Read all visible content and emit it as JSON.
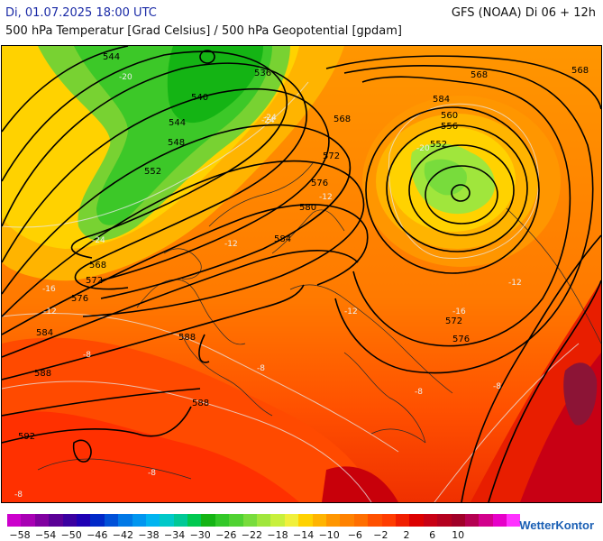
{
  "header": {
    "datetime": "Di, 01.07.2025 18:00 UTC",
    "model": "GFS (NOAA) Di 06 + 12h",
    "subtitle": "500 hPa Temperatur [Grad Celsius] / 500 hPa Geopotential [gpdam]"
  },
  "brand": "WetterKontor",
  "legend": {
    "labels": [
      "−58",
      "−54",
      "−50",
      "−46",
      "−42",
      "−38",
      "−34",
      "−30",
      "−26",
      "−22",
      "−18",
      "−14",
      "−10",
      "−6",
      "−2",
      "2",
      "6",
      "10"
    ],
    "colors": [
      "#cc00cc",
      "#a800b4",
      "#8000a0",
      "#5a0096",
      "#3a00a0",
      "#1e00b4",
      "#0028c8",
      "#0050d8",
      "#0078e6",
      "#0096f0",
      "#00b4f0",
      "#00c8c8",
      "#00c896",
      "#00c850",
      "#14b414",
      "#32c828",
      "#50d232",
      "#78dc3c",
      "#a0e63c",
      "#c8f03c",
      "#f0f03c",
      "#ffd200",
      "#ffb400",
      "#ff9600",
      "#ff8200",
      "#ff6e00",
      "#ff5000",
      "#ff3c00",
      "#f01e00",
      "#dc0000",
      "#c80014",
      "#b4001e",
      "#a00028",
      "#b40050",
      "#d2008c",
      "#e600c8",
      "#ff32ff"
    ]
  },
  "map": {
    "geopotential_labels": [
      {
        "text": "544"
      },
      {
        "text": "536"
      },
      {
        "text": "540"
      },
      {
        "text": "544"
      },
      {
        "text": "548"
      },
      {
        "text": "552"
      },
      {
        "text": "568"
      },
      {
        "text": "572"
      },
      {
        "text": "576"
      },
      {
        "text": "584"
      },
      {
        "text": "588"
      },
      {
        "text": "588"
      },
      {
        "text": "588"
      },
      {
        "text": "592"
      },
      {
        "text": "580"
      },
      {
        "text": "584"
      },
      {
        "text": "576"
      },
      {
        "text": "572"
      },
      {
        "text": "568"
      },
      {
        "text": "568"
      },
      {
        "text": "584"
      },
      {
        "text": "560"
      },
      {
        "text": "556"
      },
      {
        "text": "552"
      },
      {
        "text": "572"
      },
      {
        "text": "576"
      },
      {
        "text": "568"
      }
    ],
    "temperature_labels": [
      {
        "text": "-20"
      },
      {
        "text": "-24"
      },
      {
        "text": "-24"
      },
      {
        "text": "-16"
      },
      {
        "text": "-12"
      },
      {
        "text": "-12"
      },
      {
        "text": "-12"
      },
      {
        "text": "-8"
      },
      {
        "text": "-8"
      },
      {
        "text": "-8"
      },
      {
        "text": "-8"
      },
      {
        "text": "-8"
      },
      {
        "text": "-12"
      },
      {
        "text": "-12"
      },
      {
        "text": "-16"
      },
      {
        "text": "-20"
      },
      {
        "text": "-24"
      },
      {
        "text": "-8"
      }
    ]
  }
}
